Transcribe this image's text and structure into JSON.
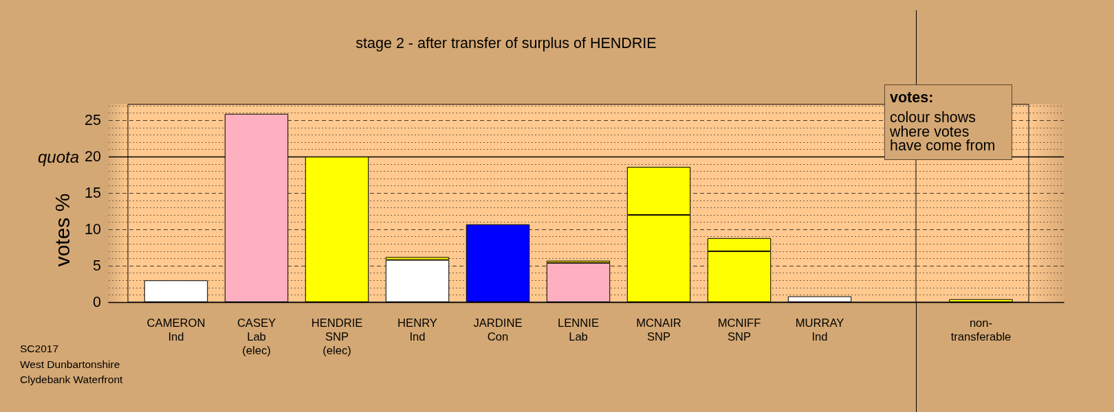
{
  "chart_data": [
    {
      "type": "bar",
      "title": "stage 2 - after transfer of surplus of HENDRIE",
      "ylabel": "votes %",
      "categories": [
        "CAMERON\nInd",
        "CASEY\nLab\n(elec)",
        "HENDRIE\nSNP\n(elec)",
        "HENRY\nInd",
        "JARDINE\nCon",
        "LENNIE\nLab",
        "MCNAIR\nSNP",
        "MCNIFF\nSNP",
        "MURRAY\nInd"
      ],
      "series": [
        {
          "colors": [
            "#ffffff",
            "#ffb0c0",
            "#ffff00",
            "#ffffff",
            "#0000ff",
            "#ffb0c0",
            "#ffff00",
            "#ffff00",
            "#ffffff"
          ],
          "values": [
            3.0,
            25.9,
            20.0,
            5.8,
            10.7,
            5.4,
            12.0,
            7.0,
            0.8
          ]
        },
        {
          "color": "#ffff00",
          "values": [
            null,
            null,
            null,
            0.4,
            null,
            0.3,
            6.6,
            1.8,
            null
          ]
        }
      ],
      "stacked": true,
      "ylim": [
        0,
        27.2
      ],
      "yticks": [
        0,
        {
          "value": 1,
          "label": null
        },
        {
          "value": 2,
          "label": null
        },
        {
          "value": 3,
          "label": null
        },
        {
          "value": 4,
          "label": null
        },
        5,
        {
          "value": 6,
          "label": null
        },
        {
          "value": 7,
          "label": null
        },
        {
          "value": 8,
          "label": null
        },
        {
          "value": 9,
          "label": null
        },
        10,
        {
          "value": 11,
          "label": null
        },
        {
          "value": 12,
          "label": null
        },
        {
          "value": 13,
          "label": null
        },
        {
          "value": 14,
          "label": null
        },
        15,
        {
          "value": 16,
          "label": null
        },
        {
          "value": 17,
          "label": null
        },
        {
          "value": 18,
          "label": null
        },
        {
          "value": 19,
          "label": null
        },
        20,
        {
          "value": 21,
          "label": null
        },
        {
          "value": 22,
          "label": null
        },
        {
          "value": 23,
          "label": null
        },
        {
          "value": 24,
          "label": null
        },
        25,
        {
          "value": 26,
          "label": null
        },
        {
          "value": 27,
          "label": null
        }
      ],
      "grid": "y",
      "ref_lines": [
        {
          "axis": "y",
          "value": 20,
          "label": "quota",
          "color": "#000000"
        }
      ],
      "annotations": [
        "SC2017\nWest Dunbartonshire\nClydebank Waterfront"
      ]
    },
    {
      "type": "bar",
      "categories": [
        "non-\ntransferable"
      ],
      "series": [
        {
          "color": "#ffff00",
          "values": [
            0.4
          ]
        }
      ],
      "ylim": [
        0,
        27.2
      ],
      "yticks": [
        0,
        {
          "value": 1,
          "label": null
        },
        {
          "value": 2,
          "label": null
        },
        {
          "value": 3,
          "label": null
        },
        {
          "value": 4,
          "label": null
        },
        5,
        {
          "value": 6,
          "label": null
        },
        {
          "value": 7,
          "label": null
        },
        {
          "value": 8,
          "label": null
        },
        {
          "value": 9,
          "label": null
        },
        10,
        {
          "value": 11,
          "label": null
        },
        {
          "value": 12,
          "label": null
        },
        {
          "value": 13,
          "label": null
        },
        {
          "value": 14,
          "label": null
        },
        15,
        {
          "value": 16,
          "label": null
        },
        {
          "value": 17,
          "label": null
        },
        {
          "value": 18,
          "label": null
        },
        {
          "value": 19,
          "label": null
        },
        20,
        {
          "value": 21,
          "label": null
        },
        {
          "value": 22,
          "label": null
        },
        {
          "value": 23,
          "label": null
        },
        {
          "value": 24,
          "label": null
        },
        25,
        {
          "value": 26,
          "label": null
        },
        {
          "value": 27,
          "label": null
        }
      ],
      "grid": "y",
      "tick_labels": "x",
      "ref_lines": [
        {
          "axis": "y",
          "value": 20,
          "color": "#000000"
        }
      ],
      "annotations": [
        "votes:",
        "colour shows\nwhere votes\nhave come from"
      ]
    }
  ]
}
